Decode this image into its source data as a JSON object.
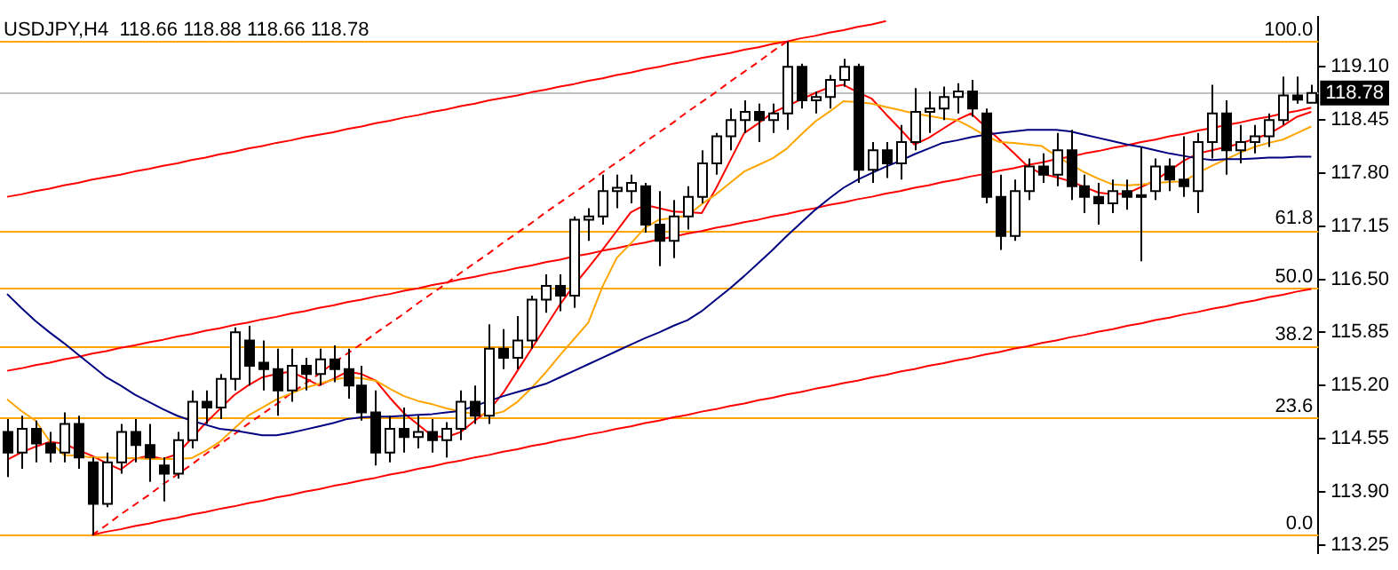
{
  "chart_data": {
    "type": "candlestick",
    "title": "USDJPY,H4  118.66 118.88 118.66 118.78",
    "categories": [
      null,
      null,
      null,
      null,
      null,
      null,
      null,
      null,
      null,
      null,
      null,
      null,
      null,
      null,
      null,
      null,
      null,
      null,
      null,
      null,
      null,
      null,
      null,
      null,
      null,
      null,
      null,
      null,
      null,
      null,
      null,
      null,
      null,
      null,
      null,
      null,
      null,
      null,
      null,
      null,
      null,
      null,
      null,
      null,
      null,
      null,
      null,
      null,
      null,
      null,
      null,
      null,
      null,
      null,
      null,
      null,
      null,
      null,
      null,
      null,
      null,
      null,
      null,
      null,
      null,
      null,
      null,
      null,
      null,
      null,
      null,
      null,
      null,
      null,
      null,
      null,
      null,
      null,
      null,
      null,
      null,
      null,
      null,
      null,
      null,
      null,
      null,
      null,
      null,
      null,
      null,
      null,
      null
    ],
    "ohlc": [
      [
        114.63,
        114.79,
        114.08,
        114.38
      ],
      [
        114.38,
        114.83,
        114.18,
        114.67
      ],
      [
        114.67,
        114.77,
        114.26,
        114.49
      ],
      [
        114.49,
        114.63,
        114.26,
        114.38
      ],
      [
        114.38,
        114.87,
        114.26,
        114.73
      ],
      [
        114.73,
        114.83,
        114.18,
        114.32
      ],
      [
        114.26,
        114.32,
        113.37,
        113.75
      ],
      [
        113.75,
        114.38,
        113.71,
        114.26
      ],
      [
        114.26,
        114.73,
        114.12,
        114.63
      ],
      [
        114.63,
        114.79,
        114.26,
        114.47
      ],
      [
        114.47,
        114.73,
        114.02,
        114.32
      ],
      [
        114.22,
        114.32,
        113.78,
        114.12
      ],
      [
        114.12,
        114.63,
        114.06,
        114.53
      ],
      [
        114.53,
        115.14,
        114.43,
        115.0
      ],
      [
        115.0,
        115.14,
        114.73,
        114.93
      ],
      [
        114.93,
        115.34,
        114.79,
        115.28
      ],
      [
        115.28,
        115.91,
        115.14,
        115.85
      ],
      [
        115.75,
        115.93,
        115.2,
        115.44
      ],
      [
        115.48,
        115.75,
        115.14,
        115.4
      ],
      [
        115.4,
        115.65,
        114.83,
        115.14
      ],
      [
        115.14,
        115.65,
        115.0,
        115.44
      ],
      [
        115.44,
        115.54,
        115.14,
        115.34
      ],
      [
        115.34,
        115.65,
        115.2,
        115.52
      ],
      [
        115.52,
        115.69,
        115.24,
        115.4
      ],
      [
        115.4,
        115.65,
        115.04,
        115.2
      ],
      [
        115.2,
        115.44,
        114.77,
        114.87
      ],
      [
        114.87,
        115.14,
        114.22,
        114.38
      ],
      [
        114.38,
        114.83,
        114.26,
        114.67
      ],
      [
        114.67,
        114.93,
        114.38,
        114.57
      ],
      [
        114.57,
        114.83,
        114.43,
        114.63
      ],
      [
        114.63,
        114.79,
        114.38,
        114.53
      ],
      [
        114.53,
        114.75,
        114.32,
        114.67
      ],
      [
        114.67,
        115.14,
        114.53,
        115.0
      ],
      [
        115.0,
        115.2,
        114.73,
        114.83
      ],
      [
        114.83,
        115.95,
        114.73,
        115.65
      ],
      [
        115.65,
        115.89,
        115.4,
        115.54
      ],
      [
        115.54,
        116.05,
        115.4,
        115.75
      ],
      [
        115.75,
        116.3,
        115.65,
        116.25
      ],
      [
        116.25,
        116.56,
        116.09,
        116.42
      ],
      [
        116.42,
        116.56,
        116.11,
        116.3
      ],
      [
        116.3,
        117.27,
        116.15,
        117.23
      ],
      [
        117.23,
        117.37,
        116.97,
        117.27
      ],
      [
        117.27,
        117.78,
        117.17,
        117.58
      ],
      [
        117.58,
        117.78,
        117.37,
        117.62
      ],
      [
        117.58,
        117.78,
        117.43,
        117.68
      ],
      [
        117.64,
        117.68,
        117.07,
        117.17
      ],
      [
        117.17,
        117.58,
        116.66,
        116.97
      ],
      [
        116.97,
        117.47,
        116.76,
        117.27
      ],
      [
        117.27,
        117.64,
        117.11,
        117.51
      ],
      [
        117.51,
        118.08,
        117.43,
        117.92
      ],
      [
        117.92,
        118.29,
        117.78,
        118.25
      ],
      [
        118.25,
        118.59,
        118.08,
        118.45
      ],
      [
        118.45,
        118.69,
        118.29,
        118.55
      ],
      [
        118.55,
        118.65,
        118.18,
        118.45
      ],
      [
        118.45,
        118.65,
        118.29,
        118.53
      ],
      [
        118.53,
        119.41,
        118.33,
        119.1
      ],
      [
        119.1,
        119.14,
        118.59,
        118.69
      ],
      [
        118.69,
        118.8,
        118.53,
        118.73
      ],
      [
        118.73,
        119.0,
        118.59,
        118.94
      ],
      [
        118.94,
        119.2,
        118.86,
        119.1
      ],
      [
        119.1,
        119.14,
        117.68,
        117.84
      ],
      [
        117.84,
        118.18,
        117.68,
        118.08
      ],
      [
        118.08,
        118.18,
        117.74,
        117.92
      ],
      [
        117.92,
        118.39,
        117.72,
        118.18
      ],
      [
        118.18,
        118.84,
        118.08,
        118.55
      ],
      [
        118.55,
        118.8,
        118.29,
        118.59
      ],
      [
        118.59,
        118.86,
        118.45,
        118.73
      ],
      [
        118.73,
        118.9,
        118.53,
        118.8
      ],
      [
        118.8,
        118.94,
        118.49,
        118.59
      ],
      [
        118.53,
        118.59,
        117.43,
        117.51
      ],
      [
        117.51,
        117.78,
        116.86,
        117.03
      ],
      [
        117.03,
        117.72,
        116.97,
        117.58
      ],
      [
        117.58,
        117.98,
        117.47,
        117.88
      ],
      [
        117.88,
        118.04,
        117.68,
        117.78
      ],
      [
        117.78,
        118.29,
        117.64,
        118.08
      ],
      [
        118.08,
        118.33,
        117.47,
        117.64
      ],
      [
        117.64,
        117.78,
        117.31,
        117.51
      ],
      [
        117.51,
        117.68,
        117.17,
        117.43
      ],
      [
        117.43,
        117.72,
        117.31,
        117.58
      ],
      [
        117.58,
        117.72,
        117.35,
        117.51
      ],
      [
        117.51,
        118.12,
        116.72,
        117.53
      ],
      [
        117.58,
        117.98,
        117.47,
        117.88
      ],
      [
        117.88,
        117.98,
        117.58,
        117.72
      ],
      [
        117.72,
        118.25,
        117.51,
        117.64
      ],
      [
        117.58,
        118.29,
        117.31,
        118.18
      ],
      [
        118.18,
        118.88,
        117.98,
        118.53
      ],
      [
        118.53,
        118.69,
        117.78,
        118.08
      ],
      [
        118.08,
        118.39,
        117.92,
        118.18
      ],
      [
        118.18,
        118.39,
        118.04,
        118.25
      ],
      [
        118.25,
        118.53,
        118.12,
        118.45
      ],
      [
        118.45,
        118.98,
        118.39,
        118.75
      ],
      [
        118.75,
        118.98,
        118.65,
        118.7
      ],
      [
        118.66,
        118.88,
        118.66,
        118.78
      ]
    ],
    "series": [
      {
        "type": "line",
        "color": "#000080",
        "values": [
          116.32,
          116.15,
          115.99,
          115.85,
          115.72,
          115.58,
          115.44,
          115.3,
          115.2,
          115.09,
          115.0,
          114.91,
          114.83,
          114.77,
          114.72,
          114.67,
          114.65,
          114.62,
          114.59,
          114.59,
          114.62,
          114.66,
          114.7,
          114.74,
          114.79,
          114.81,
          114.82,
          114.82,
          114.83,
          114.84,
          114.85,
          114.87,
          114.89,
          114.95,
          115.01,
          115.07,
          115.12,
          115.17,
          115.22,
          115.3,
          115.38,
          115.46,
          115.54,
          115.62,
          115.7,
          115.78,
          115.85,
          115.93,
          116.0,
          116.11,
          116.25,
          116.39,
          116.54,
          116.7,
          116.86,
          117.03,
          117.19,
          117.35,
          117.49,
          117.62,
          117.72,
          117.8,
          117.88,
          117.95,
          118.03,
          118.1,
          118.17,
          118.2,
          118.24,
          118.27,
          118.29,
          118.31,
          118.33,
          118.33,
          118.33,
          118.31,
          118.27,
          118.23,
          118.19,
          118.15,
          118.12,
          118.08,
          118.04,
          118.01,
          117.98,
          117.96,
          117.97,
          117.97,
          117.98,
          117.99,
          117.99,
          118.0,
          118.0
        ]
      },
      {
        "type": "line",
        "color": "#ffa500",
        "values": [
          115.03,
          114.89,
          114.77,
          114.52,
          114.35,
          114.34,
          114.32,
          114.32,
          114.31,
          114.31,
          114.3,
          114.3,
          114.3,
          114.31,
          114.4,
          114.51,
          114.67,
          114.83,
          114.93,
          115.03,
          115.1,
          115.17,
          115.22,
          115.27,
          115.3,
          115.29,
          115.26,
          115.16,
          115.07,
          115.01,
          114.97,
          114.92,
          114.88,
          114.85,
          114.84,
          114.88,
          115.0,
          115.17,
          115.36,
          115.57,
          115.77,
          115.97,
          116.41,
          116.76,
          116.94,
          117.13,
          117.23,
          117.25,
          117.28,
          117.42,
          117.54,
          117.68,
          117.82,
          117.9,
          117.98,
          118.1,
          118.27,
          118.43,
          118.55,
          118.68,
          118.67,
          118.65,
          118.61,
          118.57,
          118.53,
          118.5,
          118.47,
          118.45,
          118.36,
          118.26,
          118.18,
          118.17,
          118.15,
          118.13,
          118.01,
          117.91,
          117.81,
          117.73,
          117.66,
          117.65,
          117.66,
          117.68,
          117.69,
          117.7,
          117.8,
          117.89,
          117.97,
          118.05,
          118.12,
          118.17,
          118.21,
          118.29,
          118.37
        ]
      },
      {
        "type": "line",
        "color": "#ff0000",
        "values": [
          114.29,
          114.38,
          114.45,
          114.51,
          114.49,
          114.41,
          114.34,
          114.25,
          114.17,
          114.3,
          114.34,
          114.3,
          114.36,
          114.55,
          114.74,
          114.91,
          115.08,
          115.2,
          115.3,
          115.34,
          115.37,
          115.29,
          115.2,
          115.28,
          115.37,
          115.34,
          115.26,
          115.05,
          114.86,
          114.72,
          114.58,
          114.57,
          114.63,
          114.77,
          114.9,
          115.11,
          115.38,
          115.65,
          115.92,
          116.19,
          116.43,
          116.64,
          116.86,
          117.09,
          117.32,
          117.41,
          117.37,
          117.33,
          117.32,
          117.31,
          117.61,
          117.95,
          118.29,
          118.41,
          118.54,
          118.62,
          118.7,
          118.78,
          118.85,
          118.88,
          118.79,
          118.71,
          118.52,
          118.34,
          118.15,
          118.23,
          118.34,
          118.45,
          118.53,
          118.37,
          118.21,
          118.05,
          117.88,
          117.79,
          117.75,
          117.7,
          117.63,
          117.56,
          117.54,
          117.55,
          117.63,
          117.71,
          117.83,
          117.95,
          118.04,
          118.08,
          118.12,
          118.16,
          118.22,
          118.28,
          118.38,
          118.49,
          118.55
        ]
      },
      {
        "type": "line",
        "color": "#ff0000",
        "values": [
          117.51,
          117.54,
          117.58,
          117.61,
          117.65,
          117.68,
          117.72,
          117.75,
          117.78,
          117.82,
          117.85,
          117.89,
          117.92,
          117.96,
          117.99,
          118.03,
          118.06,
          118.1,
          118.13,
          118.17,
          118.2,
          118.24,
          118.27,
          118.3,
          118.34,
          118.37,
          118.41,
          118.44,
          118.48,
          118.51,
          118.55,
          118.58,
          118.62,
          118.65,
          118.69,
          118.72,
          118.75,
          118.79,
          118.82,
          118.86,
          118.89,
          118.93,
          118.96,
          119.0,
          119.03,
          119.07,
          119.1,
          119.14,
          119.17,
          119.21,
          119.24,
          119.27,
          119.31,
          119.34,
          119.38,
          119.41,
          119.45,
          119.48,
          119.52,
          119.55,
          119.59,
          119.62,
          119.66,
          null,
          null,
          null,
          null,
          null,
          null,
          null,
          null,
          null,
          null,
          null,
          null,
          null,
          null,
          null,
          null,
          null,
          null,
          null,
          null,
          null,
          null,
          null,
          null,
          null,
          null,
          null,
          null,
          null,
          null
        ]
      },
      {
        "type": "line",
        "color": "#ff0000",
        "values": [
          115.38,
          115.41,
          115.45,
          115.48,
          115.52,
          115.55,
          115.59,
          115.62,
          115.66,
          115.69,
          115.73,
          115.76,
          115.8,
          115.83,
          115.87,
          115.9,
          115.94,
          115.97,
          116.01,
          116.04,
          116.08,
          116.11,
          116.15,
          116.18,
          116.22,
          116.25,
          116.29,
          116.32,
          116.36,
          116.39,
          116.43,
          116.46,
          116.5,
          116.53,
          116.57,
          116.6,
          116.64,
          116.67,
          116.71,
          116.74,
          116.78,
          116.81,
          116.85,
          116.88,
          116.92,
          116.95,
          116.99,
          117.02,
          117.06,
          117.09,
          117.13,
          117.16,
          117.2,
          117.23,
          117.27,
          117.3,
          117.34,
          117.37,
          117.41,
          117.44,
          117.48,
          117.51,
          117.55,
          117.58,
          117.62,
          117.65,
          117.69,
          117.72,
          117.76,
          117.79,
          117.83,
          117.86,
          117.9,
          117.93,
          117.97,
          118.0,
          118.04,
          118.07,
          118.11,
          118.14,
          118.18,
          118.21,
          118.25,
          118.28,
          118.32,
          118.35,
          118.39,
          118.42,
          118.46,
          118.49,
          118.53,
          118.56,
          118.6
        ]
      },
      {
        "type": "line",
        "color": "#ff0000",
        "values": [
          null,
          null,
          null,
          null,
          null,
          null,
          113.37,
          113.41,
          113.44,
          113.48,
          113.51,
          113.55,
          113.58,
          113.62,
          113.65,
          113.69,
          113.72,
          113.76,
          113.79,
          113.83,
          113.86,
          113.9,
          113.93,
          113.97,
          114.0,
          114.04,
          114.07,
          114.11,
          114.14,
          114.18,
          114.21,
          114.25,
          114.28,
          114.32,
          114.35,
          114.39,
          114.42,
          114.46,
          114.49,
          114.53,
          114.56,
          114.6,
          114.63,
          114.67,
          114.7,
          114.74,
          114.77,
          114.81,
          114.84,
          114.88,
          114.91,
          114.95,
          114.98,
          115.02,
          115.05,
          115.09,
          115.12,
          115.16,
          115.19,
          115.23,
          115.26,
          115.3,
          115.33,
          115.37,
          115.4,
          115.44,
          115.47,
          115.51,
          115.54,
          115.58,
          115.61,
          115.65,
          115.68,
          115.72,
          115.75,
          115.79,
          115.82,
          115.86,
          115.89,
          115.93,
          115.96,
          116.0,
          116.03,
          116.07,
          116.1,
          116.14,
          116.17,
          116.21,
          116.24,
          116.28,
          116.31,
          116.35,
          116.38
        ]
      },
      {
        "type": "line",
        "color": "#ff0000",
        "line_style": "dashed",
        "values": [
          null,
          null,
          null,
          null,
          null,
          null,
          113.37,
          113.49,
          113.62,
          113.74,
          113.86,
          113.99,
          114.11,
          114.23,
          114.36,
          114.48,
          114.6,
          114.73,
          114.85,
          114.97,
          115.1,
          115.22,
          115.34,
          115.47,
          115.59,
          115.71,
          115.84,
          115.96,
          116.08,
          116.21,
          116.33,
          116.45,
          116.58,
          116.7,
          116.82,
          116.95,
          117.07,
          117.19,
          117.32,
          117.44,
          117.56,
          117.68,
          117.81,
          117.93,
          118.05,
          118.18,
          118.3,
          118.42,
          118.55,
          118.67,
          118.79,
          118.92,
          119.04,
          119.16,
          119.29,
          119.41,
          null,
          null,
          null,
          null,
          null,
          null,
          null,
          null,
          null,
          null,
          null,
          null,
          null,
          null,
          null,
          null,
          null,
          null,
          null,
          null,
          null,
          null,
          null,
          null,
          null,
          null,
          null,
          null,
          null,
          null,
          null,
          null,
          null,
          null,
          null,
          null,
          null
        ]
      }
    ],
    "ref_lines": [
      {
        "axis": "y",
        "value": 119.41,
        "color": "#ffa500"
      },
      {
        "axis": "y",
        "value": 117.1,
        "color": "#ffa500"
      },
      {
        "axis": "y",
        "value": 116.39,
        "color": "#ffa500"
      },
      {
        "axis": "y",
        "value": 115.68,
        "color": "#ffa500"
      },
      {
        "axis": "y",
        "value": 114.8,
        "color": "#ffa500"
      },
      {
        "axis": "y",
        "value": 113.37,
        "color": "#ffa500"
      },
      {
        "axis": "y",
        "value": 118.78,
        "label": "118.78",
        "color": "#c0c0c0"
      }
    ],
    "annotations": [
      {
        "text": "100.0",
        "y": 119.41
      },
      {
        "text": "61.8",
        "y": 117.1
      },
      {
        "text": "50.0",
        "y": 116.39
      },
      {
        "text": "38.2",
        "y": 115.68
      },
      {
        "text": "23.6",
        "y": 114.8
      },
      {
        "text": "0.0",
        "y": 113.37
      }
    ],
    "ylim": [
      113.15,
      119.71
    ],
    "yticks": [
      {
        "value": 119.1,
        "label": "119.10"
      },
      {
        "value": 118.45,
        "label": "118.45"
      },
      {
        "value": 117.8,
        "label": "117.80"
      },
      {
        "value": 117.15,
        "label": "117.15"
      },
      {
        "value": 116.5,
        "label": "116.50"
      },
      {
        "value": 115.85,
        "label": "115.85"
      },
      {
        "value": 115.2,
        "label": "115.20"
      },
      {
        "value": 114.55,
        "label": "114.55"
      },
      {
        "value": 113.9,
        "label": "113.90"
      },
      {
        "value": 113.25,
        "label": "113.25"
      }
    ],
    "tick_labels": "y",
    "grid": false,
    "legend": false,
    "marker": "none"
  }
}
